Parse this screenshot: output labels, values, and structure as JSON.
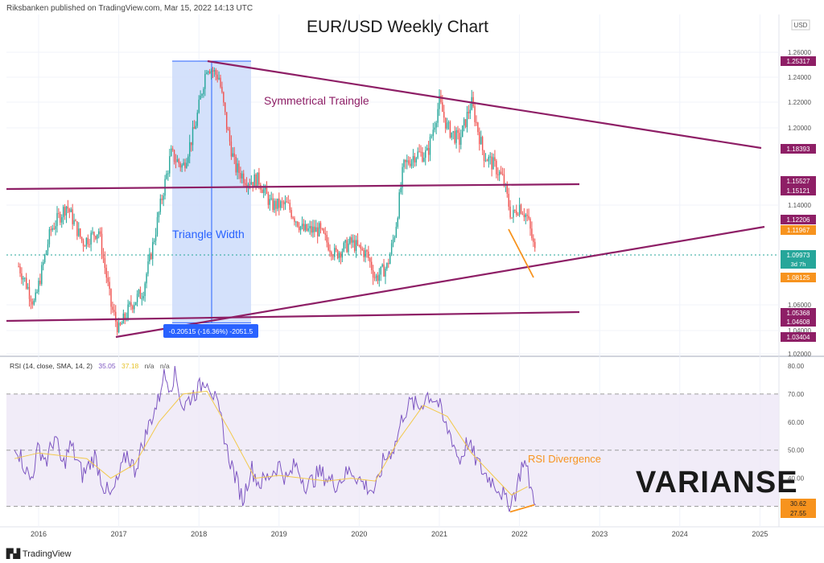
{
  "header": {
    "publisher": "Riksbanken published on TradingView.com, Mar 15, 2022 14:13 UTC"
  },
  "footer": {
    "brand": "TradingView",
    "watermark": "VARIANSE"
  },
  "chart_data": [
    {
      "type": "candlestick",
      "title": "EUR/USD Weekly Chart",
      "currency_label": "USD",
      "x_ticks": [
        "2016",
        "2017",
        "2018",
        "2019",
        "2020",
        "2021",
        "2022",
        "2023",
        "2024",
        "2025"
      ],
      "y_ticks": [
        "1.26000",
        "1.24000",
        "1.22000",
        "1.20000",
        "1.14000",
        "1.06000",
        "1.04000",
        "1.02000"
      ],
      "price_series_approx": [
        [
          2015.75,
          1.09
        ],
        [
          2015.95,
          1.06
        ],
        [
          2016.15,
          1.12
        ],
        [
          2016.35,
          1.14
        ],
        [
          2016.55,
          1.11
        ],
        [
          2016.75,
          1.12
        ],
        [
          2016.9,
          1.06
        ],
        [
          2017.0,
          1.04
        ],
        [
          2017.15,
          1.06
        ],
        [
          2017.3,
          1.07
        ],
        [
          2017.4,
          1.1
        ],
        [
          2017.55,
          1.15
        ],
        [
          2017.65,
          1.18
        ],
        [
          2017.8,
          1.17
        ],
        [
          2017.95,
          1.2
        ],
        [
          2018.1,
          1.25
        ],
        [
          2018.25,
          1.24
        ],
        [
          2018.35,
          1.2
        ],
        [
          2018.45,
          1.17
        ],
        [
          2018.6,
          1.16
        ],
        [
          2018.75,
          1.16
        ],
        [
          2018.9,
          1.14
        ],
        [
          2019.1,
          1.14
        ],
        [
          2019.3,
          1.12
        ],
        [
          2019.5,
          1.12
        ],
        [
          2019.7,
          1.1
        ],
        [
          2019.9,
          1.11
        ],
        [
          2020.1,
          1.1
        ],
        [
          2020.2,
          1.08
        ],
        [
          2020.35,
          1.09
        ],
        [
          2020.45,
          1.12
        ],
        [
          2020.55,
          1.17
        ],
        [
          2020.7,
          1.18
        ],
        [
          2020.85,
          1.18
        ],
        [
          2021.0,
          1.22
        ],
        [
          2021.1,
          1.2
        ],
        [
          2021.25,
          1.19
        ],
        [
          2021.4,
          1.22
        ],
        [
          2021.55,
          1.18
        ],
        [
          2021.7,
          1.17
        ],
        [
          2021.8,
          1.16
        ],
        [
          2021.9,
          1.13
        ],
        [
          2022.0,
          1.14
        ],
        [
          2022.1,
          1.13
        ],
        [
          2022.2,
          1.1
        ]
      ],
      "annotations": [
        {
          "text": "Symmetrical Traingle"
        },
        {
          "text": "Triangle Width"
        },
        {
          "text": "-0.20515 (-16.36%) -2051.5"
        }
      ],
      "price_labels": [
        "1.25317",
        "1.18393",
        "1.15527",
        "1.15121",
        "1.12206",
        "1.11967",
        "1.09973",
        "3d 7h",
        "1.08125",
        "1.05368",
        "1.04608",
        "1.03404"
      ],
      "colors": {
        "up": "#26a69a",
        "down": "#ef5350",
        "trend": "#8e1f66",
        "band": "#cfdefb",
        "orange": "#f7931e",
        "blue": "#2962ff"
      }
    },
    {
      "type": "line",
      "title": "RSI (14, close, SMA, 14, 2)",
      "legend_values": [
        "35.05",
        "37.18",
        "n/a",
        "n/a"
      ],
      "y_ticks": [
        "80.00",
        "70.00",
        "60.00",
        "50.00",
        "40.00",
        "30.00"
      ],
      "ylim": [
        23,
        82
      ],
      "rsi_series_approx": [
        [
          2015.7,
          53
        ],
        [
          2015.8,
          46
        ],
        [
          2015.9,
          39
        ],
        [
          2016.0,
          51
        ],
        [
          2016.1,
          46
        ],
        [
          2016.2,
          55
        ],
        [
          2016.3,
          44
        ],
        [
          2016.4,
          52
        ],
        [
          2016.55,
          41
        ],
        [
          2016.7,
          48
        ],
        [
          2016.8,
          38
        ],
        [
          2016.9,
          33
        ],
        [
          2017.0,
          40
        ],
        [
          2017.1,
          49
        ],
        [
          2017.2,
          43
        ],
        [
          2017.3,
          52
        ],
        [
          2017.4,
          61
        ],
        [
          2017.5,
          68
        ],
        [
          2017.55,
          77
        ],
        [
          2017.65,
          73
        ],
        [
          2017.7,
          78
        ],
        [
          2017.8,
          65
        ],
        [
          2017.9,
          69
        ],
        [
          2018.0,
          72
        ],
        [
          2018.1,
          76
        ],
        [
          2018.2,
          68
        ],
        [
          2018.3,
          58
        ],
        [
          2018.35,
          50
        ],
        [
          2018.45,
          41
        ],
        [
          2018.55,
          32
        ],
        [
          2018.65,
          44
        ],
        [
          2018.75,
          38
        ],
        [
          2018.85,
          40
        ],
        [
          2019.0,
          45
        ],
        [
          2019.1,
          39
        ],
        [
          2019.2,
          45
        ],
        [
          2019.35,
          37
        ],
        [
          2019.5,
          42
        ],
        [
          2019.7,
          38
        ],
        [
          2019.9,
          43
        ],
        [
          2020.05,
          38
        ],
        [
          2020.2,
          35
        ],
        [
          2020.3,
          46
        ],
        [
          2020.45,
          52
        ],
        [
          2020.55,
          63
        ],
        [
          2020.65,
          67
        ],
        [
          2020.75,
          65
        ],
        [
          2020.85,
          70
        ],
        [
          2020.95,
          68
        ],
        [
          2021.0,
          66
        ],
        [
          2021.05,
          60
        ],
        [
          2021.15,
          55
        ],
        [
          2021.25,
          46
        ],
        [
          2021.35,
          53
        ],
        [
          2021.45,
          47
        ],
        [
          2021.55,
          42
        ],
        [
          2021.7,
          38
        ],
        [
          2021.8,
          34
        ],
        [
          2021.85,
          30
        ],
        [
          2021.9,
          33
        ],
        [
          2021.95,
          35
        ],
        [
          2022.05,
          47
        ],
        [
          2022.1,
          42
        ],
        [
          2022.15,
          35
        ],
        [
          2022.2,
          33
        ]
      ],
      "rsi_sma_series_approx": [
        [
          2015.7,
          47
        ],
        [
          2016.0,
          49
        ],
        [
          2016.3,
          48
        ],
        [
          2016.6,
          47
        ],
        [
          2016.9,
          40
        ],
        [
          2017.2,
          45
        ],
        [
          2017.5,
          60
        ],
        [
          2017.8,
          70
        ],
        [
          2018.1,
          71
        ],
        [
          2018.4,
          56
        ],
        [
          2018.7,
          40
        ],
        [
          2019.0,
          41
        ],
        [
          2019.3,
          40
        ],
        [
          2019.6,
          39
        ],
        [
          2019.9,
          40
        ],
        [
          2020.2,
          39
        ],
        [
          2020.5,
          54
        ],
        [
          2020.8,
          66
        ],
        [
          2021.1,
          62
        ],
        [
          2021.4,
          49
        ],
        [
          2021.7,
          40
        ],
        [
          2021.9,
          34
        ],
        [
          2022.1,
          37
        ]
      ],
      "price_labels": [
        "30.62",
        "27.55"
      ],
      "annotations": [
        {
          "text": "RSI Divergence"
        }
      ]
    }
  ]
}
